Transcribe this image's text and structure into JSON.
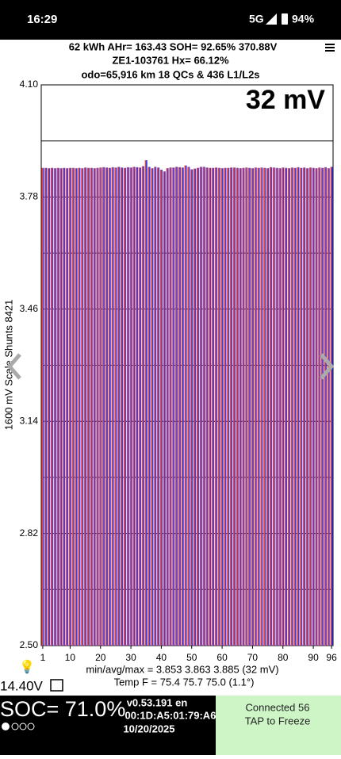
{
  "status_bar": {
    "time": "16:29",
    "network": "5G",
    "battery": "94%"
  },
  "header": {
    "line1": "62 kWh  AHr= 163.43  SOH= 92.65%  370.88V",
    "line2": "ZE1-103761  Hx= 66.12%",
    "line3": "odo=65,916 km 18 QCs & 436 L1/L2s"
  },
  "chart_data": {
    "type": "bar",
    "annotation": "32 mV",
    "y_label": "1600 mV Scale Shunts 8421",
    "values": [
      3.863,
      3.863,
      3.862,
      3.863,
      3.862,
      3.863,
      3.862,
      3.863,
      3.862,
      3.863,
      3.863,
      3.862,
      3.863,
      3.862,
      3.864,
      3.863,
      3.863,
      3.862,
      3.863,
      3.864,
      3.865,
      3.864,
      3.863,
      3.865,
      3.864,
      3.866,
      3.864,
      3.863,
      3.865,
      3.864,
      3.866,
      3.865,
      3.864,
      3.868,
      3.885,
      3.866,
      3.862,
      3.866,
      3.864,
      3.858,
      3.853,
      3.862,
      3.864,
      3.864,
      3.866,
      3.865,
      3.864,
      3.87,
      3.866,
      3.859,
      3.861,
      3.863,
      3.866,
      3.866,
      3.864,
      3.863,
      3.863,
      3.864,
      3.863,
      3.862,
      3.863,
      3.863,
      3.864,
      3.864,
      3.863,
      3.862,
      3.863,
      3.864,
      3.863,
      3.862,
      3.864,
      3.863,
      3.864,
      3.863,
      3.862,
      3.865,
      3.864,
      3.863,
      3.862,
      3.864,
      3.863,
      3.862,
      3.864,
      3.863,
      3.865,
      3.863,
      3.864,
      3.862,
      3.864,
      3.863,
      3.862,
      3.864,
      3.863,
      3.865,
      3.862,
      3.866
    ],
    "colors": [
      "#e8453c",
      "#3d3de6"
    ],
    "ylim": [
      2.5,
      4.1
    ],
    "yticks": [
      {
        "value": 2.5,
        "label": "2.50"
      },
      {
        "value": 2.82,
        "label": "2.82"
      },
      {
        "value": 3.14,
        "label": "3.14"
      },
      {
        "value": 3.46,
        "label": "3.46"
      },
      {
        "value": 3.78,
        "label": "3.78"
      },
      {
        "value": 4.1,
        "label": "4.10"
      }
    ],
    "minor_yticks": [
      2.66,
      2.98,
      3.3,
      3.62,
      3.94
    ],
    "xticks": [
      1,
      10,
      20,
      30,
      40,
      50,
      60,
      70,
      80,
      90,
      96
    ],
    "grid": true
  },
  "stats": {
    "minavgmax": "min/avg/max = 3.853 3.863 3.885  (32 mV)",
    "temp": "Temp F = 75.4  75.7  75.0  (1.1°)"
  },
  "footer": {
    "voltage": "14.40V",
    "soc": "SOC= 71.0%",
    "version": "v0.53.191 en",
    "mac": "00:1D:A5:01:79:A6",
    "date": "10/20/2025",
    "connected": "Connected 56",
    "tap": "TAP to Freeze"
  }
}
